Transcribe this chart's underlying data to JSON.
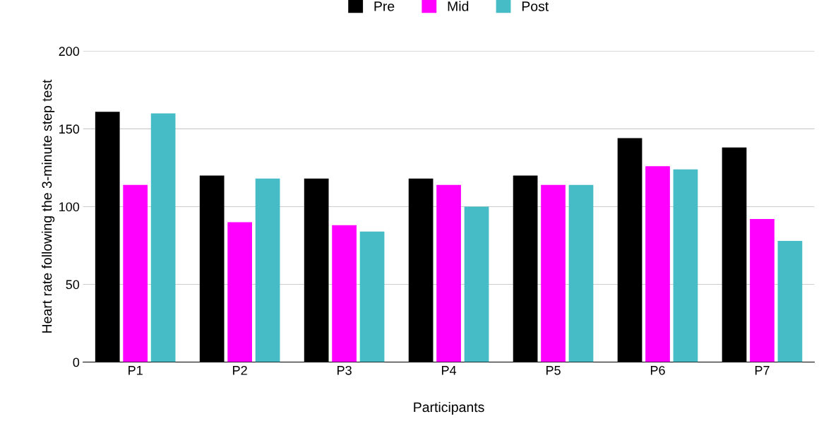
{
  "chart_data": {
    "type": "bar",
    "xlabel": "Participants",
    "ylabel": "Heart rate following the 3-minute step test",
    "categories": [
      "P1",
      "P2",
      "P3",
      "P4",
      "P5",
      "P6",
      "P7"
    ],
    "series": [
      {
        "name": "Pre",
        "color": "#000000",
        "values": [
          161,
          120,
          118,
          118,
          120,
          144,
          138
        ]
      },
      {
        "name": "Mid",
        "color": "#ff00ff",
        "values": [
          114,
          90,
          88,
          114,
          114,
          126,
          92
        ]
      },
      {
        "name": "Post",
        "color": "#46bdc6",
        "values": [
          160,
          118,
          84,
          100,
          114,
          124,
          78
        ]
      }
    ],
    "ylim": [
      0,
      200
    ],
    "yticks": [
      0,
      50,
      100,
      150,
      200
    ],
    "grid": "y",
    "legend": "top"
  }
}
